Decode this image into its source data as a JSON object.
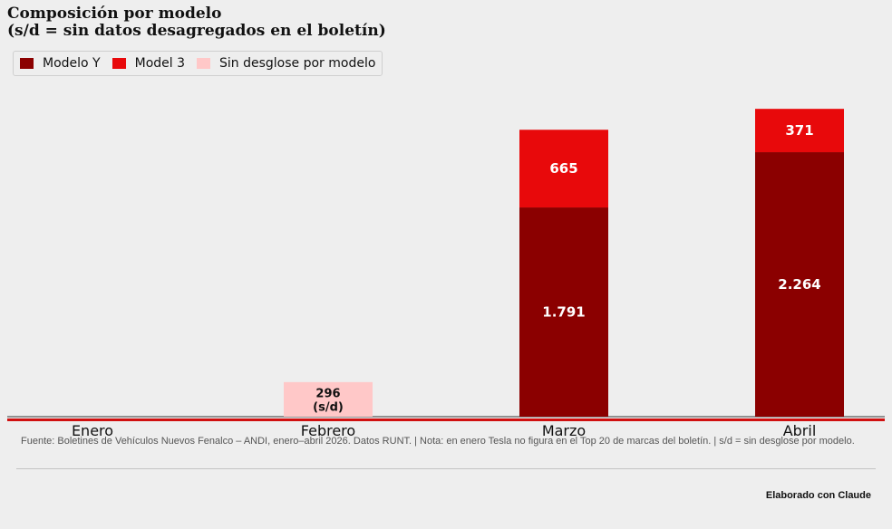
{
  "title_line1": "Composición por modelo",
  "title_line2": "(s/d = sin datos desagregados en el boletín)",
  "legend": [
    {
      "label": "Modelo Y",
      "color": "#8b0000"
    },
    {
      "label": "Model 3",
      "color": "#e8090b"
    },
    {
      "label": "Sin desglose por modelo",
      "color": "#ffc8c8"
    }
  ],
  "chart_data": {
    "type": "bar",
    "stacked": true,
    "categories": [
      "Enero",
      "Febrero",
      "Marzo",
      "Abril"
    ],
    "series": [
      {
        "name": "Modelo Y",
        "color": "#8b0000",
        "values": [
          0,
          0,
          1791,
          2264
        ],
        "labels": [
          "",
          "",
          "1.791",
          "2.264"
        ]
      },
      {
        "name": "Model 3",
        "color": "#e8090b",
        "values": [
          0,
          0,
          665,
          371
        ],
        "labels": [
          "",
          "",
          "665",
          "371"
        ]
      },
      {
        "name": "Sin desglose por modelo",
        "color": "#ffc8c8",
        "values": [
          0,
          296,
          0,
          0
        ],
        "labels": [
          "",
          "296\n(s/d)",
          "",
          ""
        ]
      }
    ],
    "ylim": [
      0,
      2900
    ],
    "yaxis_visible": false,
    "grid": false,
    "legend_position": "top-left",
    "accent_line_color": "#d01010"
  },
  "footnote": "Fuente: Boletines de Vehículos Nuevos Fenalco – ANDI, enero–abril 2026. Datos RUNT.  |  Nota: en enero Tesla no figura en el Top 20 de marcas del boletín.  |  s/d = sin desglose por modelo.",
  "credit": "Elaborado con Claude"
}
